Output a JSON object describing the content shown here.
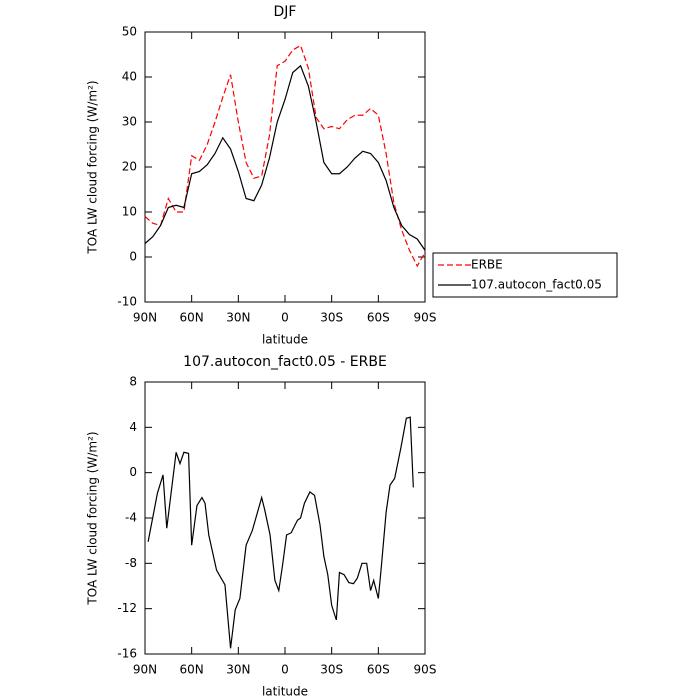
{
  "chart_data": [
    {
      "type": "line",
      "title": "DJF",
      "xlabel": "latitude",
      "ylabel": "TOA LW cloud forcing (W/m²)",
      "x": [
        90,
        85,
        80,
        75,
        70,
        65,
        60,
        55,
        50,
        45,
        40,
        35,
        30,
        25,
        20,
        15,
        10,
        5,
        0,
        -5,
        -10,
        -15,
        -20,
        -25,
        -30,
        -35,
        -40,
        -45,
        -50,
        -55,
        -60,
        -65,
        -70,
        -75,
        -80,
        -85,
        -90
      ],
      "series": [
        {
          "name": "ERBE",
          "color": "#ff0000",
          "line_style": "dashed",
          "values": [
            9,
            7.5,
            7,
            13,
            10,
            10,
            22.5,
            21.5,
            25,
            30,
            35.5,
            40.5,
            30,
            21,
            17.5,
            18,
            27,
            42.5,
            43.5,
            46,
            47,
            42,
            31,
            28.5,
            29,
            28.5,
            30.5,
            31.5,
            31.5,
            33,
            31.5,
            23,
            12,
            6,
            1.5,
            -2,
            1
          ]
        },
        {
          "name": "107.autocon_fact0.05",
          "color": "#000000",
          "line_style": "solid",
          "values": [
            3,
            4.5,
            7,
            11,
            11.5,
            11,
            18.5,
            19,
            20.5,
            23,
            26.5,
            24,
            19,
            13,
            12.5,
            16,
            22,
            30,
            35,
            41,
            42.5,
            38,
            30,
            21,
            18.5,
            18.5,
            20,
            22,
            23.5,
            23,
            21,
            17,
            11,
            7,
            5,
            4,
            1.5
          ]
        }
      ],
      "xlim": [
        90,
        -90
      ],
      "xticks": [
        {
          "value": 90,
          "label": "90N"
        },
        {
          "value": 60,
          "label": "60N"
        },
        {
          "value": 30,
          "label": "30N"
        },
        0,
        {
          "value": -30,
          "label": "30S"
        },
        {
          "value": -60,
          "label": "60S"
        },
        {
          "value": -90,
          "label": "90S"
        }
      ],
      "ylim": [
        -10,
        50
      ],
      "yticks": [
        -10,
        0,
        10,
        20,
        30,
        40,
        50
      ],
      "legend": "right"
    },
    {
      "type": "line",
      "title": "107.autocon_fact0.05 - ERBE",
      "xlabel": "latitude",
      "ylabel": "TOA LW cloud forcing (W/m²)",
      "x": [
        88,
        82,
        78.4,
        76,
        70,
        67.5,
        65,
        62,
        60,
        56.6,
        53.4,
        51.4,
        49,
        44,
        38.6,
        35,
        32,
        29,
        25,
        21,
        15,
        13,
        9.6,
        6.5,
        4,
        1.5,
        -1,
        -4,
        -8,
        -10,
        -12.5,
        -16,
        -19,
        -22.5,
        -25,
        -27.5,
        -30,
        -33,
        -35,
        -38,
        -41,
        -44,
        -46.5,
        -49.5,
        -52.5,
        -55,
        -57,
        -60,
        -62,
        -65,
        -67.5,
        -70.5,
        -74.5,
        -78,
        -80.5,
        -82.5
      ],
      "series": [
        {
          "name": "107.autocon_fact0.05 - ERBE",
          "color": "#000000",
          "line_style": "solid",
          "values": [
            -6.1,
            -1.8,
            -0.2,
            -4.9,
            1.8,
            0.8,
            1.8,
            1.7,
            -6.4,
            -2.9,
            -2.2,
            -2.7,
            -5.5,
            -8.6,
            -9.9,
            -15.5,
            -12.1,
            -11.1,
            -6.4,
            -5.1,
            -2.2,
            -3.3,
            -5.5,
            -9.5,
            -10.4,
            -8.1,
            -5.5,
            -5.3,
            -4.2,
            -4,
            -2.7,
            -1.7,
            -2,
            -4.6,
            -7.4,
            -9,
            -11.7,
            -13,
            -8.8,
            -9,
            -9.7,
            -9.8,
            -9.3,
            -8,
            -8,
            -10.4,
            -9.5,
            -11.1,
            -8.2,
            -3.5,
            -1.1,
            -0.5,
            2.2,
            4.8,
            4.9,
            -1.3
          ]
        }
      ],
      "xlim": [
        90,
        -90
      ],
      "xticks": [
        {
          "value": 90,
          "label": "90N"
        },
        {
          "value": 60,
          "label": "60N"
        },
        {
          "value": 30,
          "label": "30N"
        },
        0,
        {
          "value": -30,
          "label": "30S"
        },
        {
          "value": -60,
          "label": "60S"
        },
        {
          "value": -90,
          "label": "90S"
        }
      ],
      "ylim": [
        -16,
        8
      ],
      "yticks": [
        -16,
        -12,
        -8,
        -4,
        0,
        4,
        8
      ]
    }
  ]
}
